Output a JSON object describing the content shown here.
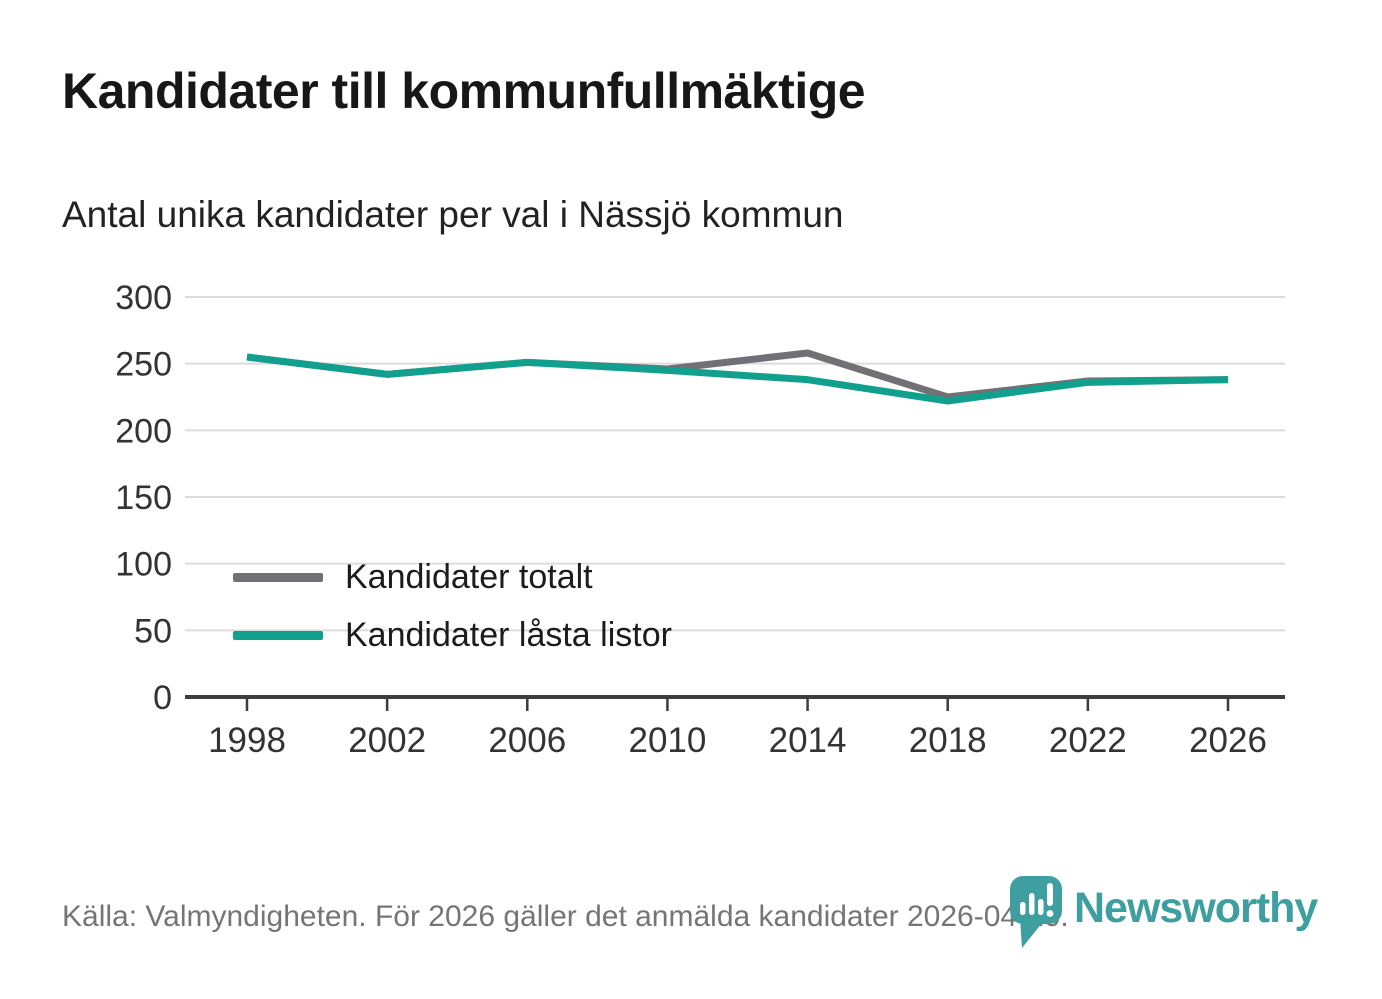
{
  "header": {
    "title": "Kandidater till kommunfullmäktige",
    "subtitle": "Antal unika kandidater per val i Nässjö kommun"
  },
  "chart_data": {
    "type": "line",
    "x": [
      1998,
      2002,
      2006,
      2010,
      2014,
      2018,
      2022,
      2026
    ],
    "series": [
      {
        "name": "Kandidater totalt",
        "color": "#717175",
        "values": [
          255,
          242,
          251,
          246,
          258,
          225,
          237,
          238
        ]
      },
      {
        "name": "Kandidater låsta listor",
        "color": "#12a08e",
        "values": [
          255,
          242,
          251,
          245,
          238,
          222,
          236,
          238
        ]
      }
    ],
    "title": "Kandidater till kommunfullmäktige",
    "subtitle": "Antal unika kandidater per val i Nässjö kommun",
    "xlabel": "",
    "ylabel": "",
    "ylim": [
      0,
      300
    ],
    "yticks": [
      0,
      50,
      100,
      150,
      200,
      250,
      300
    ],
    "grid": true,
    "legend_position": "inside-left",
    "gridline_color": "#dcdcdc",
    "axis_color": "#3d3d3d",
    "tick_label_color": "#333333"
  },
  "footer": {
    "source": "Källa: Valmyndigheten. För 2026 gäller det anmälda kandidater 2026-04-10.",
    "brand": "Newsworthy",
    "brand_color": "#3f9fa0"
  }
}
